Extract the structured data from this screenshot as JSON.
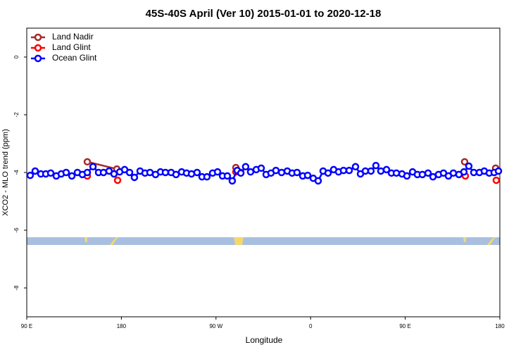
{
  "chart_data": {
    "type": "line",
    "title": "45S-40S April (Ver 10)   2015-01-01 to 2020-12-18",
    "x_label": "Longitude",
    "y_label": "XCO2 - MLO trend (ppm)",
    "xlim": [
      90,
      540
    ],
    "xticks": [
      {
        "value": 90,
        "label": "90 E"
      },
      {
        "value": 180,
        "label": "180"
      },
      {
        "value": 270,
        "label": "90 W"
      },
      {
        "value": 360,
        "label": "0"
      },
      {
        "value": 450,
        "label": "90 E"
      },
      {
        "value": 540,
        "label": "180"
      }
    ],
    "ylim": [
      -9,
      1
    ],
    "yticks": [
      -8,
      -6,
      -4,
      -2,
      0
    ],
    "legend": "top-left",
    "series": [
      {
        "name": "Land Nadir",
        "color": "#a52a2a",
        "x": [
          147.6,
          175.7,
          null,
          288.9,
          null,
          506.5,
          null,
          536
        ],
        "values": [
          -3.63,
          -3.88,
          null,
          -3.83,
          null,
          -3.63,
          null,
          -3.85
        ]
      },
      {
        "name": "Land Glint",
        "color": "#ff0000",
        "x": [
          147.6,
          null,
          176.4,
          null,
          288.9,
          293.6,
          null,
          507.2,
          null,
          536.6
        ],
        "values": [
          -4.12,
          null,
          -4.27,
          null,
          -3.98,
          -4.0,
          null,
          -4.12,
          null,
          -4.27
        ]
      },
      {
        "name": "Ocean Glint",
        "color": "#0000ff",
        "x": [
          93.3,
          98,
          103.4,
          108.1,
          112.8,
          118.1,
          122.8,
          127.5,
          132.9,
          138.2,
          142.9,
          147.6,
          153,
          158.3,
          163,
          168.3,
          173,
          178.4,
          183.1,
          187.8,
          192.4,
          197.8,
          202.5,
          207.2,
          212.5,
          217.2,
          221.9,
          227.3,
          232,
          237.3,
          242,
          246.7,
          252,
          256.7,
          261.4,
          266.8,
          271.5,
          276.2,
          280.8,
          285.5,
          290.2,
          293.6,
          298.2,
          302.9,
          308.3,
          313,
          317.7,
          322.3,
          327,
          332.4,
          337.8,
          342.4,
          347.1,
          352.5,
          357.2,
          362.5,
          367.2,
          371.9,
          376.6,
          381.9,
          386.6,
          391.3,
          396.7,
          402.7,
          407.4,
          412.1,
          417.4,
          422.1,
          426.8,
          432.2,
          436.9,
          441.6,
          446.9,
          451.6,
          457,
          461.6,
          466.3,
          471.7,
          476.4,
          481.7,
          486.4,
          491.1,
          495.8,
          501.1,
          505.8,
          510.5,
          515.2,
          520.6,
          525.2,
          529.9,
          534.6,
          538.7
        ],
        "values": [
          -4.1,
          -3.95,
          -4.05,
          -4.05,
          -4.02,
          -4.12,
          -4.05,
          -4.0,
          -4.12,
          -4.0,
          -4.07,
          -4.0,
          -3.8,
          -4.0,
          -4.0,
          -3.95,
          -4.05,
          -3.98,
          -3.9,
          -4.0,
          -4.17,
          -3.95,
          -4.02,
          -4.0,
          -4.07,
          -3.98,
          -4.0,
          -4.0,
          -4.07,
          -3.98,
          -4.02,
          -4.05,
          -4.0,
          -4.15,
          -4.15,
          -4.02,
          -3.98,
          -4.12,
          -4.12,
          -4.29,
          -3.93,
          -4.02,
          -3.8,
          -3.98,
          -3.9,
          -3.85,
          -4.07,
          -4.02,
          -3.93,
          -4.0,
          -3.95,
          -4.02,
          -4.0,
          -4.12,
          -4.1,
          -4.2,
          -4.29,
          -3.95,
          -4.02,
          -3.9,
          -3.98,
          -3.93,
          -3.93,
          -3.8,
          -4.05,
          -3.95,
          -3.95,
          -3.76,
          -3.95,
          -3.9,
          -4.02,
          -4.02,
          -4.05,
          -4.12,
          -3.98,
          -4.07,
          -4.07,
          -4.02,
          -4.15,
          -4.07,
          -4.02,
          -4.12,
          -4.02,
          -4.07,
          -3.98,
          -3.78,
          -4.0,
          -4.0,
          -3.95,
          -4.02,
          -4.0,
          -3.95
        ]
      }
    ]
  }
}
